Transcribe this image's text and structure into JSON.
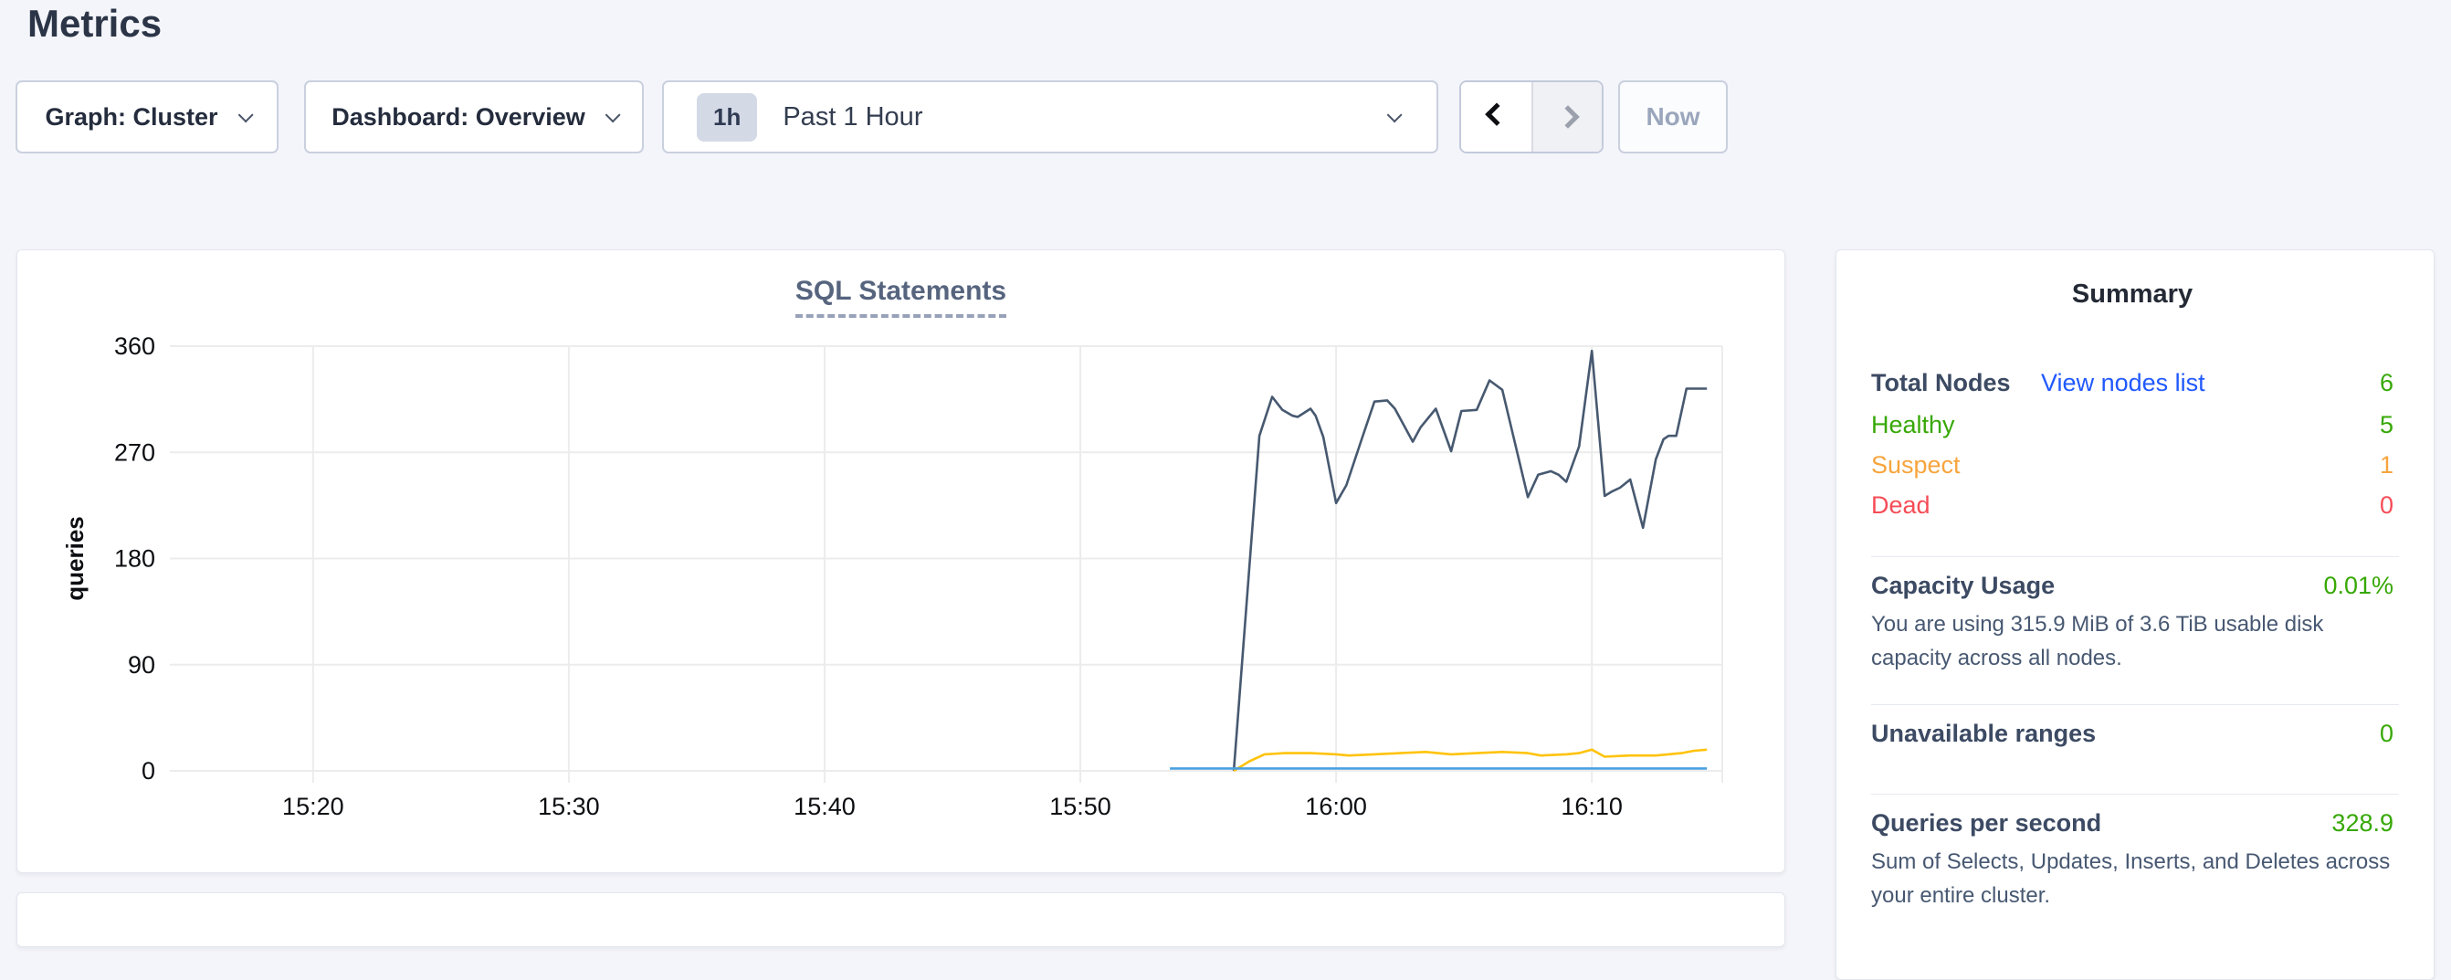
{
  "page": {
    "title": "Metrics",
    "background": "#f4f5fa"
  },
  "toolbar": {
    "graph_dropdown": "Graph: Cluster",
    "dashboard_dropdown": "Dashboard: Overview",
    "time": {
      "badge": "1h",
      "label": "Past 1 Hour"
    },
    "now_label": "Now"
  },
  "icons": {
    "chevron_down": "css-chevron-down",
    "chevron_left": "css-chevron-left",
    "chevron_right": "css-chevron-right"
  },
  "colors": {
    "green": "#37a806",
    "orange": "#f7a43d",
    "red": "#f64c56",
    "link_blue": "#2059ff",
    "title_slate": "#56647e",
    "navy_line": "#475970",
    "yellow_line": "#ffc30b",
    "blue_line": "#4aa0e0",
    "gridline": "#ececec"
  },
  "chart_data": {
    "type": "line",
    "title": "SQL Statements",
    "ylabel": "queries",
    "xlabel": "",
    "ylim": [
      0,
      360
    ],
    "yticks": [
      0,
      90,
      180,
      270,
      360
    ],
    "xlim_minutes": [
      -5.6,
      55.1
    ],
    "x_origin_time": "15:20",
    "xticks": [
      {
        "min": 0,
        "label": "15:20"
      },
      {
        "min": 10,
        "label": "15:30"
      },
      {
        "min": 20,
        "label": "15:40"
      },
      {
        "min": 30,
        "label": "15:50"
      },
      {
        "min": 40,
        "label": "16:00"
      },
      {
        "min": 50,
        "label": "16:10"
      }
    ],
    "grid": true,
    "legend": "none",
    "series": [
      {
        "name": "dark-navy-line",
        "color": "#475970",
        "points": [
          [
            36,
            0
          ],
          [
            37,
            284
          ],
          [
            37.5,
            317
          ],
          [
            37.9,
            306
          ],
          [
            38.3,
            301
          ],
          [
            38.5,
            300
          ],
          [
            39,
            307
          ],
          [
            39.2,
            301
          ],
          [
            39.5,
            283
          ],
          [
            40,
            227
          ],
          [
            40.4,
            242
          ],
          [
            40.6,
            255
          ],
          [
            41,
            281
          ],
          [
            41.5,
            313
          ],
          [
            42,
            314
          ],
          [
            42.3,
            307
          ],
          [
            43,
            279
          ],
          [
            43.3,
            291
          ],
          [
            43.9,
            307
          ],
          [
            44.5,
            271
          ],
          [
            44.9,
            305
          ],
          [
            45.5,
            306
          ],
          [
            46,
            331
          ],
          [
            46.5,
            323
          ],
          [
            47.5,
            232
          ],
          [
            47.9,
            251
          ],
          [
            48.4,
            254
          ],
          [
            48.7,
            251
          ],
          [
            49,
            245
          ],
          [
            49.5,
            275
          ],
          [
            50,
            356
          ],
          [
            50.5,
            233
          ],
          [
            50.8,
            237
          ],
          [
            51.1,
            240
          ],
          [
            51.5,
            247
          ],
          [
            52,
            206
          ],
          [
            52.5,
            264
          ],
          [
            52.8,
            281
          ],
          [
            53,
            284
          ],
          [
            53.3,
            284
          ],
          [
            53.7,
            324
          ],
          [
            54,
            324
          ],
          [
            54.5,
            324
          ]
        ]
      },
      {
        "name": "yellow-line",
        "color": "#ffc30b",
        "points": [
          [
            36,
            0
          ],
          [
            36.6,
            8
          ],
          [
            37.2,
            14
          ],
          [
            38,
            15
          ],
          [
            39,
            15
          ],
          [
            40,
            14
          ],
          [
            40.5,
            13
          ],
          [
            41.5,
            14
          ],
          [
            42.5,
            15
          ],
          [
            43.5,
            16
          ],
          [
            44.5,
            14
          ],
          [
            45.5,
            15
          ],
          [
            46.5,
            16
          ],
          [
            47.5,
            15
          ],
          [
            48,
            13
          ],
          [
            49,
            14
          ],
          [
            49.5,
            15
          ],
          [
            50,
            18
          ],
          [
            50.5,
            12
          ],
          [
            51.5,
            13
          ],
          [
            52.5,
            13
          ],
          [
            53,
            14
          ],
          [
            53.5,
            15
          ],
          [
            54,
            17
          ],
          [
            54.5,
            18
          ]
        ]
      },
      {
        "name": "light-blue-line",
        "color": "#4aa0e0",
        "points": [
          [
            33.5,
            2
          ],
          [
            54.5,
            2
          ]
        ]
      }
    ]
  },
  "summary": {
    "title": "Summary",
    "total": {
      "label": "Total Nodes",
      "link": "View nodes list",
      "value": "6"
    },
    "rows": [
      {
        "label": "Healthy",
        "value": "5"
      },
      {
        "label": "Suspect",
        "value": "1"
      },
      {
        "label": "Dead",
        "value": "0"
      }
    ],
    "capacity": {
      "label": "Capacity Usage",
      "value": "0.01%",
      "description": "You are using 315.9 MiB of 3.6 TiB usable disk capacity across all nodes."
    },
    "unavailable": {
      "label": "Unavailable ranges",
      "value": "0"
    },
    "qps": {
      "label": "Queries per second",
      "value": "328.9",
      "description": "Sum of Selects, Updates, Inserts, and Deletes across your entire cluster."
    }
  }
}
